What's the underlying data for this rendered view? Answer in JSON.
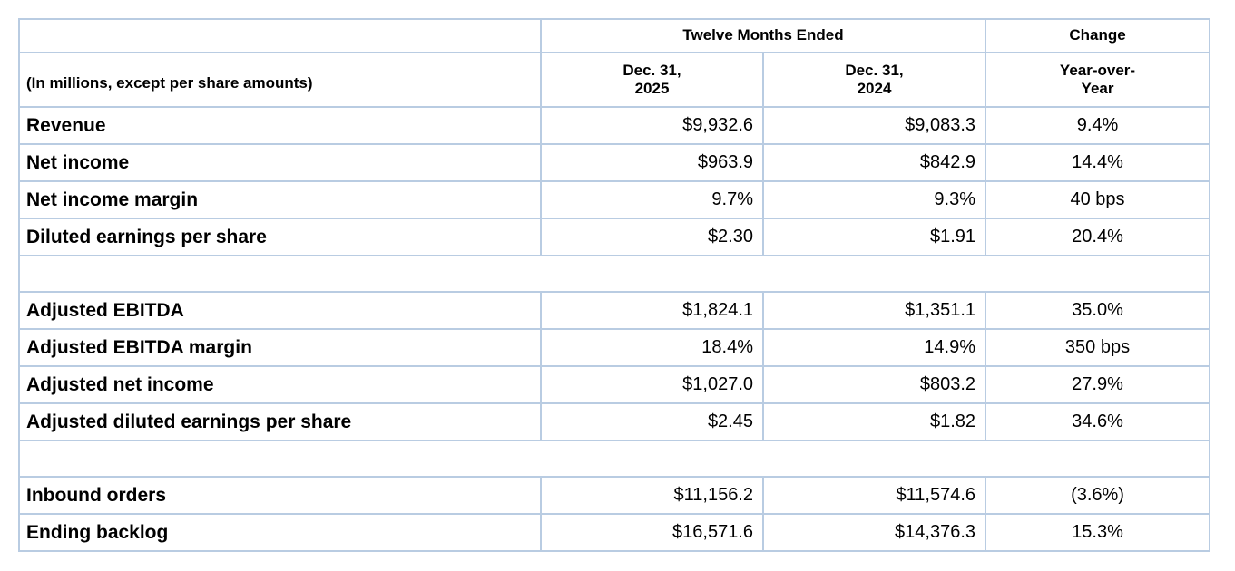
{
  "colors": {
    "border": "#b9cce2",
    "text": "#000000",
    "background": "#ffffff"
  },
  "table": {
    "group_header": "Twelve Months Ended",
    "change_header": "Change",
    "units_note": "(In millions, except per share amounts)",
    "col_headers": {
      "period_2025": "Dec. 31,\n2025",
      "period_2024": "Dec. 31,\n2024",
      "yoy": "Year-over-\nYear"
    },
    "rows": [
      {
        "label": "Revenue",
        "y2025": "$9,932.6",
        "y2024": "$9,083.3",
        "change": "9.4%"
      },
      {
        "label": "Net income",
        "y2025": "$963.9",
        "y2024": "$842.9",
        "change": "14.4%"
      },
      {
        "label": "Net income margin",
        "y2025": "9.7%",
        "y2024": "9.3%",
        "change": "40 bps"
      },
      {
        "label": "Diluted earnings per share",
        "y2025": "$2.30",
        "y2024": "$1.91",
        "change": "20.4%"
      },
      {
        "label": "Adjusted EBITDA",
        "y2025": "$1,824.1",
        "y2024": "$1,351.1",
        "change": "35.0%"
      },
      {
        "label": "Adjusted EBITDA margin",
        "y2025": "18.4%",
        "y2024": "14.9%",
        "change": "350 bps"
      },
      {
        "label": "Adjusted net income",
        "y2025": "$1,027.0",
        "y2024": "$803.2",
        "change": "27.9%"
      },
      {
        "label": "Adjusted diluted earnings per share",
        "y2025": "$2.45",
        "y2024": "$1.82",
        "change": "34.6%"
      },
      {
        "label": "Inbound orders",
        "y2025": "$11,156.2",
        "y2024": "$11,574.6",
        "change": "(3.6%)"
      },
      {
        "label": "Ending backlog",
        "y2025": "$16,571.6",
        "y2024": "$14,376.3",
        "change": "15.3%"
      }
    ]
  }
}
